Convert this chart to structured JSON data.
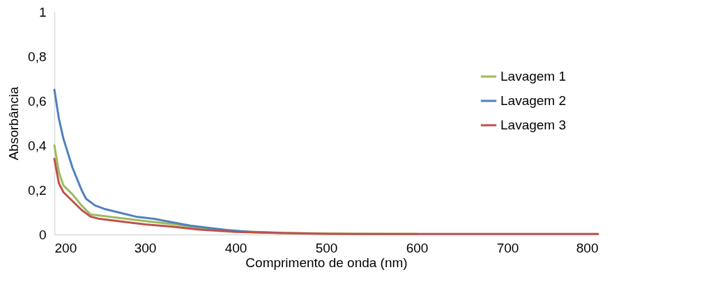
{
  "chart_data": {
    "type": "line",
    "xlabel": "Comprimento de onda (nm)",
    "ylabel": "Absorbância",
    "xlim": [
      200,
      800
    ],
    "xticks": [
      200,
      300,
      400,
      500,
      600,
      700,
      800
    ],
    "ylim": [
      0,
      1
    ],
    "yticks": [
      {
        "value": 0,
        "label": "0"
      },
      {
        "value": 0.2,
        "label": "0,2"
      },
      {
        "value": 0.4,
        "label": "0,4"
      },
      {
        "value": 0.6,
        "label": "0,6"
      },
      {
        "value": 0.8,
        "label": "0,8"
      },
      {
        "value": 1,
        "label": "1"
      }
    ],
    "grid": false,
    "legend": "right",
    "marker": "none",
    "line_style": "solid",
    "series": [
      {
        "name": "Lavagem 1",
        "color": "#9bbb59",
        "x": [
          200,
          205,
          210,
          220,
          230,
          240,
          250,
          270,
          300,
          330,
          360,
          400,
          450,
          500,
          600
        ],
        "values": [
          0.4,
          0.28,
          0.22,
          0.18,
          0.13,
          0.09,
          0.085,
          0.075,
          0.06,
          0.047,
          0.03,
          0.015,
          0.008,
          0.004,
          0.002
        ]
      },
      {
        "name": "Lavagem 2",
        "color": "#4f81bd",
        "x": [
          200,
          205,
          210,
          220,
          230,
          235,
          245,
          255,
          270,
          290,
          310,
          330,
          350,
          370,
          390,
          420,
          450
        ],
        "values": [
          0.65,
          0.52,
          0.43,
          0.3,
          0.2,
          0.16,
          0.13,
          0.115,
          0.1,
          0.08,
          0.07,
          0.055,
          0.04,
          0.03,
          0.02,
          0.01,
          0.007
        ]
      },
      {
        "name": "Lavagem 3",
        "color": "#c0504d",
        "x": [
          200,
          205,
          210,
          220,
          230,
          240,
          250,
          270,
          300,
          330,
          360,
          400,
          450,
          500,
          600,
          700,
          800
        ],
        "values": [
          0.34,
          0.23,
          0.19,
          0.15,
          0.11,
          0.08,
          0.07,
          0.06,
          0.045,
          0.035,
          0.022,
          0.012,
          0.006,
          0.003,
          0.002,
          0.002,
          0.002
        ]
      }
    ]
  }
}
